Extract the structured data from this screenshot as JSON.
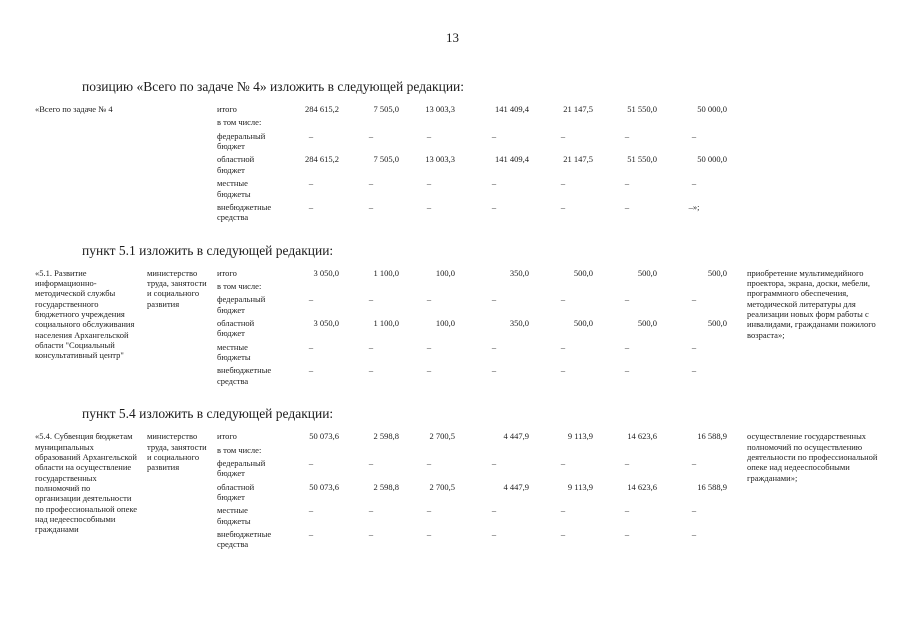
{
  "page": {
    "number": "13"
  },
  "sections": [
    {
      "intro": "позицию «Всего по задаче № 4» изложить в следующей редакции:",
      "table": {
        "title": "«Всего по задаче № 4",
        "executor": "",
        "note": "",
        "rows": [
          {
            "label": "итого",
            "values": [
              "284 615,2",
              "7 505,0",
              "13 003,3",
              "141 409,4",
              "21 147,5",
              "51 550,0",
              "50 000,0"
            ]
          },
          {
            "label": "в том числе:",
            "values": []
          },
          {
            "label": "федеральный бюджет",
            "values": [
              "–",
              "–",
              "–",
              "–",
              "–",
              "–",
              "–"
            ]
          },
          {
            "label": "областной бюджет",
            "values": [
              "284 615,2",
              "7 505,0",
              "13 003,3",
              "141 409,4",
              "21 147,5",
              "51 550,0",
              "50 000,0"
            ]
          },
          {
            "label": "местные бюджеты",
            "values": [
              "–",
              "–",
              "–",
              "–",
              "–",
              "–",
              "–"
            ]
          },
          {
            "label": "внебюджетные средства",
            "values": [
              "–",
              "–",
              "–",
              "–",
              "–",
              "–",
              "–»;"
            ]
          }
        ]
      }
    },
    {
      "intro": "пункт 5.1 изложить в следующей редакции:",
      "table": {
        "title": "«5.1. Развитие информационно-методической службы государственного бюджетного учреждения социального обслуживания населения Архангельской области \"Социальный консультативный центр\"",
        "executor": "министерство труда, занятости и социального развития",
        "note": "приобретение мультимедийного проектора, экрана, доски, мебели, программного обеспечения, методической литературы для реализации новых форм работы с инвалидами, гражданами пожилого возраста»;",
        "rows": [
          {
            "label": "итого",
            "values": [
              "3 050,0",
              "1 100,0",
              "100,0",
              "350,0",
              "500,0",
              "500,0",
              "500,0"
            ]
          },
          {
            "label": "в том числе:",
            "values": []
          },
          {
            "label": "федеральный бюджет",
            "values": [
              "–",
              "–",
              "–",
              "–",
              "–",
              "–",
              "–"
            ]
          },
          {
            "label": "областной бюджет",
            "values": [
              "3 050,0",
              "1 100,0",
              "100,0",
              "350,0",
              "500,0",
              "500,0",
              "500,0"
            ]
          },
          {
            "label": "местные бюджеты",
            "values": [
              "–",
              "–",
              "–",
              "–",
              "–",
              "–",
              "–"
            ]
          },
          {
            "label": "внебюджетные средства",
            "values": [
              "–",
              "–",
              "–",
              "–",
              "–",
              "–",
              "–"
            ]
          }
        ]
      }
    },
    {
      "intro": "пункт 5.4 изложить в следующей редакции:",
      "table": {
        "title": "«5.4. Субвенция бюджетам муниципальных образований Архангельской области на осуществление государственных полномочий по организации деятельности по профессиональной опеке над недееспособными гражданами",
        "executor": "министерство труда, занятости и социального развития",
        "note": "осуществление государственных полномочий по осуществлению деятельности по профессиональной опеке над недееспособными гражданами»;",
        "rows": [
          {
            "label": "итого",
            "values": [
              "50 073,6",
              "2 598,8",
              "2 700,5",
              "4 447,9",
              "9 113,9",
              "14 623,6",
              "16 588,9"
            ]
          },
          {
            "label": "в том числе:",
            "values": []
          },
          {
            "label": "федеральный бюджет",
            "values": [
              "–",
              "–",
              "–",
              "–",
              "–",
              "–",
              "–"
            ]
          },
          {
            "label": "областной бюджет",
            "values": [
              "50 073,6",
              "2 598,8",
              "2 700,5",
              "4 447,9",
              "9 113,9",
              "14 623,6",
              "16 588,9"
            ]
          },
          {
            "label": "местные бюджеты",
            "values": [
              "–",
              "–",
              "–",
              "–",
              "–",
              "–",
              "–"
            ]
          },
          {
            "label": "внебюджетные средства",
            "values": [
              "–",
              "–",
              "–",
              "–",
              "–",
              "–",
              "–"
            ]
          }
        ]
      }
    }
  ]
}
